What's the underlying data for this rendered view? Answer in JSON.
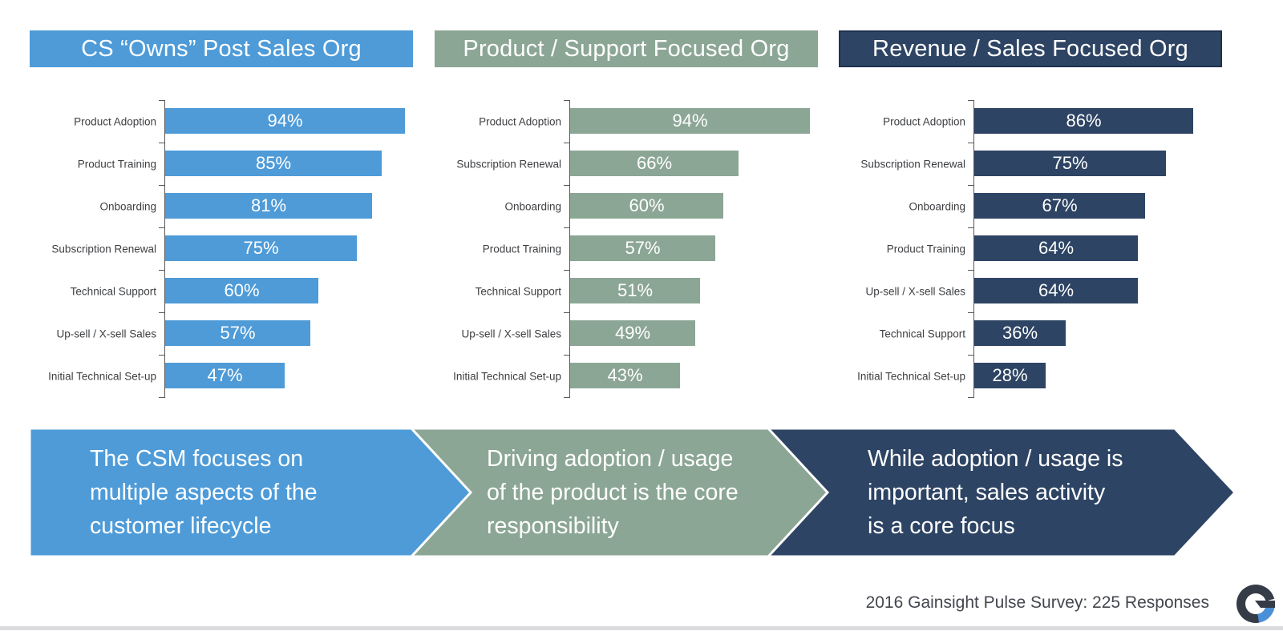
{
  "chart_data": [
    {
      "type": "bar",
      "orientation": "horizontal",
      "title": "CS “Owns” Post Sales Org",
      "color": "#4e9bd8",
      "unit": "%",
      "xlim": [
        0,
        100
      ],
      "value_label_position": "inside-center-white",
      "grid": false,
      "categories": [
        "Product Adoption",
        "Product Training",
        "Onboarding",
        "Subscription Renewal",
        "Technical Support",
        "Up-sell / X-sell Sales",
        "Initial Technical Set-up"
      ],
      "values": [
        94,
        85,
        81,
        75,
        60,
        57,
        47
      ]
    },
    {
      "type": "bar",
      "orientation": "horizontal",
      "title": "Product / Support Focused Org",
      "color": "#8ca695",
      "unit": "%",
      "xlim": [
        0,
        100
      ],
      "value_label_position": "inside-center-white",
      "grid": false,
      "categories": [
        "Product Adoption",
        "Subscription Renewal",
        "Onboarding",
        "Product Training",
        "Technical Support",
        "Up-sell / X-sell Sales",
        "Initial Technical Set-up"
      ],
      "values": [
        94,
        66,
        60,
        57,
        51,
        49,
        43
      ]
    },
    {
      "type": "bar",
      "orientation": "horizontal",
      "title": "Revenue / Sales Focused Org",
      "color": "#2e4464",
      "unit": "%",
      "xlim": [
        0,
        100
      ],
      "value_label_position": "inside-center-white",
      "grid": false,
      "categories": [
        "Product Adoption",
        "Subscription Renewal",
        "Onboarding",
        "Product Training",
        "Up-sell / X-sell Sales",
        "Technical Support",
        "Initial Technical Set-up"
      ],
      "values": [
        86,
        75,
        67,
        64,
        64,
        36,
        28
      ]
    }
  ],
  "banners": [
    {
      "text": "The CSM focuses on\nmultiple aspects of the\ncustomer lifecycle",
      "color": "#4e9bd8"
    },
    {
      "text": "Driving adoption / usage\nof the product is the core\nresponsibility",
      "color": "#8ca695"
    },
    {
      "text": "While adoption / usage is\nimportant, sales activity\nis a core focus",
      "color": "#2e4464"
    }
  ],
  "footer": {
    "source_text": "2016 Gainsight Pulse Survey: 225 Responses",
    "logo_letter": "G",
    "logo_colors": {
      "dark": "#353c47",
      "blue": "#4a90d8"
    }
  }
}
